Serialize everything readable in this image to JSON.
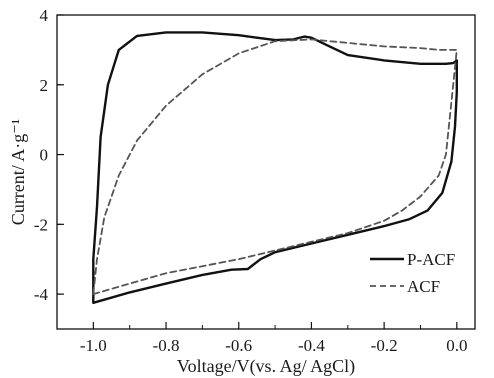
{
  "chart_data": {
    "type": "line",
    "title": "",
    "xlabel": "Voltage/V(vs. Ag/ AgCl)",
    "ylabel": "Current/ A·g⁻¹",
    "xlim": [
      -1.1,
      0.05
    ],
    "ylim": [
      -5,
      4
    ],
    "xticks": [
      -1.0,
      -0.8,
      -0.6,
      -0.4,
      -0.2,
      0.0
    ],
    "xtick_labels": [
      "-1.0",
      "-0.8",
      "-0.6",
      "-0.4",
      "-0.2",
      "0.0"
    ],
    "yticks": [
      -4,
      -2,
      0,
      2,
      4
    ],
    "ytick_labels": [
      "-4",
      "-2",
      "0",
      "2",
      "4"
    ],
    "grid": false,
    "legend_position": "bottom-right",
    "series": [
      {
        "name": "P-ACF",
        "style": "solid",
        "color": "#111111",
        "points": [
          [
            -1.0,
            -4.25
          ],
          [
            -0.9,
            -3.95
          ],
          [
            -0.8,
            -3.7
          ],
          [
            -0.7,
            -3.45
          ],
          [
            -0.62,
            -3.3
          ],
          [
            -0.575,
            -3.28
          ],
          [
            -0.54,
            -3.0
          ],
          [
            -0.5,
            -2.8
          ],
          [
            -0.4,
            -2.55
          ],
          [
            -0.3,
            -2.3
          ],
          [
            -0.2,
            -2.05
          ],
          [
            -0.13,
            -1.85
          ],
          [
            -0.08,
            -1.6
          ],
          [
            -0.04,
            -1.1
          ],
          [
            -0.015,
            -0.2
          ],
          [
            -0.005,
            0.8
          ],
          [
            0.0,
            1.8
          ],
          [
            0.0,
            2.7
          ],
          [
            -0.01,
            2.62
          ],
          [
            -0.03,
            2.6
          ],
          [
            -0.1,
            2.6
          ],
          [
            -0.2,
            2.7
          ],
          [
            -0.3,
            2.85
          ],
          [
            -0.35,
            3.1
          ],
          [
            -0.4,
            3.35
          ],
          [
            -0.42,
            3.38
          ],
          [
            -0.45,
            3.3
          ],
          [
            -0.5,
            3.28
          ],
          [
            -0.55,
            3.35
          ],
          [
            -0.6,
            3.42
          ],
          [
            -0.7,
            3.5
          ],
          [
            -0.8,
            3.5
          ],
          [
            -0.88,
            3.4
          ],
          [
            -0.93,
            3.0
          ],
          [
            -0.96,
            2.0
          ],
          [
            -0.98,
            0.5
          ],
          [
            -0.99,
            -1.5
          ],
          [
            -1.0,
            -3.0
          ],
          [
            -1.0,
            -4.25
          ]
        ]
      },
      {
        "name": "ACF",
        "style": "dashed",
        "color": "#555555",
        "points": [
          [
            -1.0,
            -4.0
          ],
          [
            -0.9,
            -3.7
          ],
          [
            -0.8,
            -3.4
          ],
          [
            -0.7,
            -3.2
          ],
          [
            -0.6,
            -3.0
          ],
          [
            -0.5,
            -2.75
          ],
          [
            -0.4,
            -2.5
          ],
          [
            -0.3,
            -2.25
          ],
          [
            -0.2,
            -1.9
          ],
          [
            -0.15,
            -1.6
          ],
          [
            -0.1,
            -1.2
          ],
          [
            -0.05,
            -0.6
          ],
          [
            -0.03,
            0.0
          ],
          [
            -0.015,
            1.5
          ],
          [
            -0.005,
            2.5
          ],
          [
            0.0,
            3.0
          ],
          [
            -0.05,
            3.0
          ],
          [
            -0.1,
            3.05
          ],
          [
            -0.2,
            3.1
          ],
          [
            -0.3,
            3.2
          ],
          [
            -0.4,
            3.3
          ],
          [
            -0.5,
            3.25
          ],
          [
            -0.6,
            2.9
          ],
          [
            -0.7,
            2.3
          ],
          [
            -0.8,
            1.4
          ],
          [
            -0.88,
            0.4
          ],
          [
            -0.93,
            -0.6
          ],
          [
            -0.97,
            -1.8
          ],
          [
            -0.99,
            -3.0
          ],
          [
            -1.0,
            -4.0
          ]
        ]
      }
    ]
  }
}
